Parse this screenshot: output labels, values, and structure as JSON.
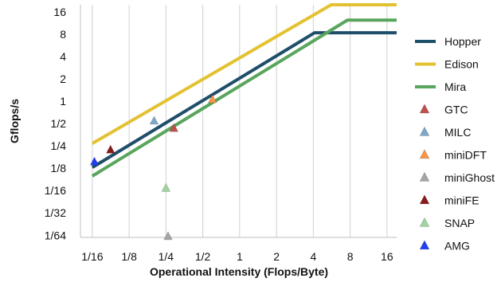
{
  "chart_data": {
    "type": "line",
    "xlabel": "Operational Intensity (Flops/Byte)",
    "ylabel": "Gflops/s",
    "x_scale": "log2",
    "y_scale": "log2",
    "xlim": [
      0.05,
      19.2
    ],
    "ylim": [
      0.0146,
      20
    ],
    "x_ticks": [
      {
        "value": 0.0625,
        "label": "1/16"
      },
      {
        "value": 0.125,
        "label": "1/8"
      },
      {
        "value": 0.25,
        "label": "1/4"
      },
      {
        "value": 0.5,
        "label": "1/2"
      },
      {
        "value": 1,
        "label": "1"
      },
      {
        "value": 2,
        "label": "2"
      },
      {
        "value": 4,
        "label": "4"
      },
      {
        "value": 8,
        "label": "8"
      },
      {
        "value": 16,
        "label": "16"
      }
    ],
    "y_ticks": [
      {
        "value": 0.015625,
        "label": "1/64"
      },
      {
        "value": 0.03125,
        "label": "1/32"
      },
      {
        "value": 0.0625,
        "label": "1/16"
      },
      {
        "value": 0.125,
        "label": "1/8"
      },
      {
        "value": 0.25,
        "label": "1/4"
      },
      {
        "value": 0.5,
        "label": "1/2"
      },
      {
        "value": 1,
        "label": "1"
      },
      {
        "value": 2,
        "label": "2"
      },
      {
        "value": 4,
        "label": "4"
      },
      {
        "value": 8,
        "label": "8"
      },
      {
        "value": 16,
        "label": "16"
      }
    ],
    "grid": {
      "vertical": true,
      "horizontal": false
    },
    "legend_position": "right",
    "rooflines": [
      {
        "name": "Hopper",
        "color": "#1f4e6b",
        "points": [
          [
            0.0625,
            0.128
          ],
          [
            4.1,
            8.4
          ],
          [
            19.2,
            8.4
          ]
        ]
      },
      {
        "name": "Edison",
        "color": "#e3c232",
        "points": [
          [
            0.0625,
            0.27
          ],
          [
            5.6,
            20
          ],
          [
            19.2,
            20
          ]
        ]
      },
      {
        "name": "Mira",
        "color": "#58a55c",
        "points": [
          [
            0.0625,
            0.098
          ],
          [
            7.6,
            12.4
          ],
          [
            19.2,
            12.4
          ]
        ]
      }
    ],
    "applications": [
      {
        "name": "GTC",
        "color": "#c0504d",
        "x": 0.29,
        "y": 0.43
      },
      {
        "name": "MILC",
        "color": "#7da7c8",
        "x": 0.2,
        "y": 0.54
      },
      {
        "name": "miniDFT",
        "color": "#f79646",
        "x": 0.6,
        "y": 1.05
      },
      {
        "name": "miniGhost",
        "color": "#a5a5a5",
        "x": 0.26,
        "y": 0.015
      },
      {
        "name": "miniFE",
        "color": "#8b1a1a",
        "x": 0.088,
        "y": 0.22
      },
      {
        "name": "SNAP",
        "color": "#9fd39f",
        "x": 0.25,
        "y": 0.067
      },
      {
        "name": "AMG",
        "color": "#1f3ff5",
        "x": 0.065,
        "y": 0.152
      }
    ]
  }
}
